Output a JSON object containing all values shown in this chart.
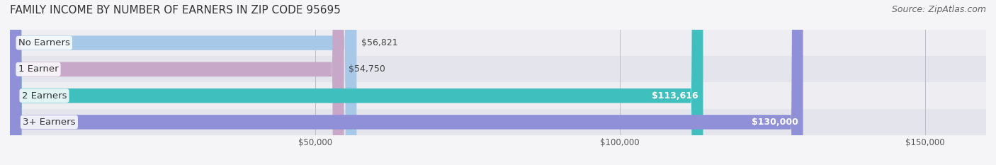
{
  "title": "FAMILY INCOME BY NUMBER OF EARNERS IN ZIP CODE 95695",
  "source": "Source: ZipAtlas.com",
  "categories": [
    "No Earners",
    "1 Earner",
    "2 Earners",
    "3+ Earners"
  ],
  "values": [
    56821,
    54750,
    113616,
    130000
  ],
  "bar_colors": [
    "#a8c8e8",
    "#c8a8c8",
    "#40bfbf",
    "#9090d8"
  ],
  "label_colors": [
    "#555555",
    "#555555",
    "#ffffff",
    "#ffffff"
  ],
  "bg_row_colors": [
    "#f0f0f5",
    "#e8e8f0",
    "#f0f0f5",
    "#e8e8f0"
  ],
  "xlim": [
    0,
    160000
  ],
  "xticks": [
    50000,
    100000,
    150000
  ],
  "xtick_labels": [
    "$50,000",
    "$100,000",
    "$150,000"
  ],
  "value_labels": [
    "$56,821",
    "$54,750",
    "$113,616",
    "$130,000"
  ],
  "title_fontsize": 11,
  "source_fontsize": 9,
  "bar_height": 0.55,
  "background_color": "#f5f5f8"
}
